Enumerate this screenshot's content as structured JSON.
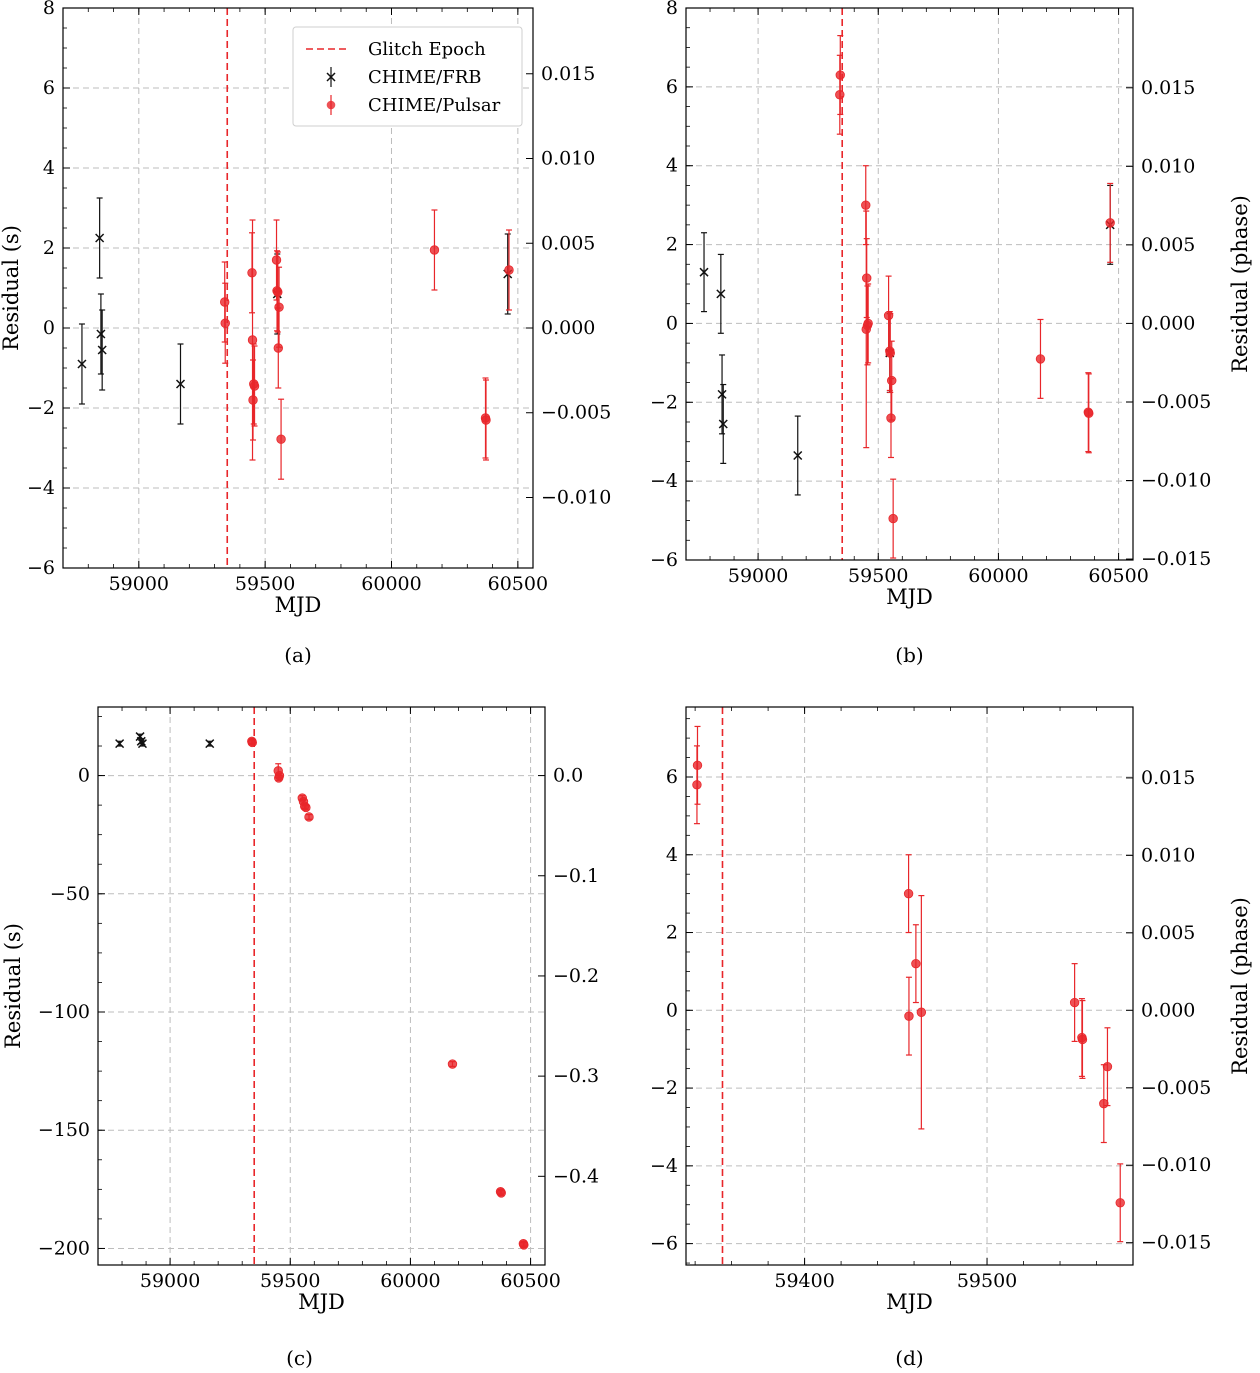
{
  "figure": {
    "colors": {
      "frb": "#111111",
      "pulsar": "#e8262a",
      "glitch": "#e8262a",
      "grid": "#bdbdbd"
    }
  },
  "legend": {
    "entries": [
      {
        "label": "Glitch Epoch",
        "kind": "dashed-line"
      },
      {
        "label": "CHIME/FRB",
        "kind": "x-marker"
      },
      {
        "label": "CHIME/Pulsar",
        "kind": "circle-marker"
      }
    ]
  },
  "chart_data": [
    {
      "id": "a",
      "caption": "(a)",
      "type": "scatter",
      "xlabel": "MJD",
      "ylabel": "Residual (s)",
      "ylabel_right": "",
      "xlim": [
        58700,
        60560
      ],
      "ylim": [
        -6,
        8
      ],
      "xticks": [
        59000,
        59500,
        60000,
        60500
      ],
      "yticks": [
        -6,
        -4,
        -2,
        0,
        2,
        4,
        6,
        8
      ],
      "yticks_right": [
        -0.01,
        -0.005,
        0.0,
        0.005,
        0.01,
        0.015
      ],
      "yticks_right_labels": [
        "−0.010",
        "−0.005",
        "0.000",
        "0.005",
        "0.010",
        "0.015"
      ],
      "right_scale": 0.00236,
      "glitch_epoch": 59350,
      "legend": true,
      "grid": true,
      "series": [
        {
          "name": "CHIME/FRB",
          "marker": "x",
          "x": [
            58775,
            58845,
            58850,
            58855,
            59165,
            59548,
            60460
          ],
          "y": [
            -0.9,
            2.25,
            -0.15,
            -0.55,
            -1.4,
            0.85,
            1.35
          ],
          "err": [
            1.0,
            1.0,
            1.0,
            1.0,
            1.0,
            1.0,
            1.0
          ]
        },
        {
          "name": "CHIME/Pulsar",
          "marker": "o",
          "x": [
            59340,
            59342,
            59448,
            59450,
            59452,
            59455,
            59458,
            59545,
            59547,
            59550,
            59552,
            59555,
            59563,
            60170,
            60372,
            60374,
            60465
          ],
          "y": [
            0.65,
            0.12,
            1.38,
            -0.3,
            -1.8,
            -1.4,
            -1.45,
            1.7,
            0.93,
            0.9,
            -0.5,
            0.52,
            -2.78,
            1.95,
            -2.25,
            -2.3,
            1.45
          ],
          "err": [
            1.0,
            1.0,
            1.0,
            3.0,
            1.0,
            1.0,
            1.0,
            1.0,
            1.0,
            1.0,
            1.0,
            1.0,
            1.0,
            1.0,
            1.0,
            1.0,
            1.0
          ]
        }
      ]
    },
    {
      "id": "b",
      "caption": "(b)",
      "type": "scatter",
      "xlabel": "MJD",
      "ylabel": "",
      "ylabel_right": "Residual (phase)",
      "xlim": [
        58700,
        60560
      ],
      "ylim": [
        -6,
        8
      ],
      "xticks": [
        59000,
        59500,
        60000,
        60500
      ],
      "yticks": [
        -6,
        -4,
        -2,
        0,
        2,
        4,
        6,
        8
      ],
      "yticks_right": [
        -0.015,
        -0.01,
        -0.005,
        0.0,
        0.005,
        0.01,
        0.015
      ],
      "yticks_right_labels": [
        "−0.015",
        "−0.010",
        "−0.005",
        "0.000",
        "0.005",
        "0.010",
        "0.015"
      ],
      "right_scale": 0.00251,
      "glitch_epoch": 59350,
      "legend": false,
      "grid": true,
      "series": [
        {
          "name": "CHIME/FRB",
          "marker": "x",
          "x": [
            58775,
            58845,
            58850,
            58855,
            59165,
            59548,
            60465
          ],
          "y": [
            1.3,
            0.75,
            -1.8,
            -2.55,
            -3.35,
            -0.75,
            2.5
          ],
          "err": [
            1.0,
            1.0,
            1.0,
            1.0,
            1.0,
            1.0,
            1.0
          ]
        },
        {
          "name": "CHIME/Pulsar",
          "marker": "o",
          "x": [
            59340,
            59342,
            59448,
            59450,
            59452,
            59455,
            59458,
            59543,
            59548,
            59550,
            59553,
            59556,
            59562,
            60175,
            60374,
            60376,
            60465
          ],
          "y": [
            5.8,
            6.3,
            3.0,
            -0.15,
            1.15,
            -0.05,
            0.0,
            0.2,
            -0.7,
            -0.75,
            -2.4,
            -1.45,
            -4.95,
            -0.9,
            -2.25,
            -2.28,
            2.55
          ],
          "err": [
            1.0,
            1.0,
            1.0,
            3.0,
            1.0,
            1.0,
            1.0,
            1.0,
            1.0,
            1.0,
            1.0,
            1.0,
            1.0,
            1.0,
            1.0,
            1.0,
            1.0
          ]
        }
      ]
    },
    {
      "id": "c",
      "caption": "(c)",
      "type": "scatter",
      "xlabel": "MJD",
      "ylabel": "Residual (s)",
      "ylabel_right": "",
      "xlim": [
        58700,
        60560
      ],
      "ylim": [
        -207,
        29
      ],
      "xticks": [
        59000,
        59500,
        60000,
        60500
      ],
      "yticks": [
        -200,
        -150,
        -100,
        -50,
        0
      ],
      "yticks_right": [
        -0.4,
        -0.3,
        -0.2,
        -0.1,
        0.0
      ],
      "yticks_right_labels": [
        "−0.4",
        "−0.3",
        "−0.2",
        "−0.1",
        "0.0"
      ],
      "right_scale": 0.00236,
      "glitch_epoch": 59350,
      "legend": false,
      "grid": true,
      "series": [
        {
          "name": "CHIME/FRB",
          "marker": "x",
          "x": [
            58790,
            58875,
            58880,
            58885,
            59165
          ],
          "y": [
            13.5,
            16.5,
            14.5,
            13.5,
            13.5
          ],
          "err": [
            1.0,
            1.0,
            1.0,
            1.0,
            1.0
          ]
        },
        {
          "name": "CHIME/Pulsar",
          "marker": "o",
          "x": [
            59340,
            59342,
            59450,
            59452,
            59455,
            59550,
            59555,
            59560,
            59565,
            59578,
            60175,
            60375,
            60378,
            60470,
            60472
          ],
          "y": [
            14.5,
            14.0,
            2.0,
            -1.0,
            0.0,
            -9.5,
            -11.0,
            -13.0,
            -13.5,
            -17.5,
            -122.0,
            -176.0,
            -176.5,
            -198.0,
            -198.5
          ],
          "err": [
            1.0,
            1.0,
            3.0,
            1.0,
            1.0,
            1.0,
            1.0,
            1.0,
            1.0,
            1.0,
            1.0,
            1.0,
            1.0,
            1.0,
            1.0
          ]
        }
      ]
    },
    {
      "id": "d",
      "caption": "(d)",
      "type": "scatter",
      "xlabel": "MJD",
      "ylabel": "",
      "ylabel_right": "Residual (phase)",
      "xlim": [
        59335,
        59580
      ],
      "ylim": [
        -6.55,
        7.8
      ],
      "xticks": [
        59400,
        59500
      ],
      "yticks": [
        -6,
        -4,
        -2,
        0,
        2,
        4,
        6
      ],
      "yticks_right": [
        -0.015,
        -0.01,
        -0.005,
        0.0,
        0.005,
        0.01,
        0.015
      ],
      "yticks_right_labels": [
        "−0.015",
        "−0.010",
        "−0.005",
        "0.000",
        "0.005",
        "0.010",
        "0.015"
      ],
      "right_scale": 0.00251,
      "glitch_epoch": 59355,
      "legend": false,
      "grid": true,
      "series": [
        {
          "name": "CHIME/Pulsar",
          "marker": "o",
          "x": [
            59341,
            59341.3,
            59457,
            59457.2,
            59461,
            59464,
            59548,
            59552,
            59552.3,
            59564,
            59566,
            59573
          ],
          "y": [
            5.8,
            6.3,
            3.0,
            -0.15,
            1.2,
            -0.05,
            0.2,
            -0.7,
            -0.75,
            -2.4,
            -1.45,
            -4.95
          ],
          "err": [
            1.0,
            1.0,
            1.0,
            1.0,
            1.0,
            3.0,
            1.0,
            1.0,
            1.0,
            1.0,
            1.0,
            1.0
          ]
        }
      ]
    }
  ]
}
